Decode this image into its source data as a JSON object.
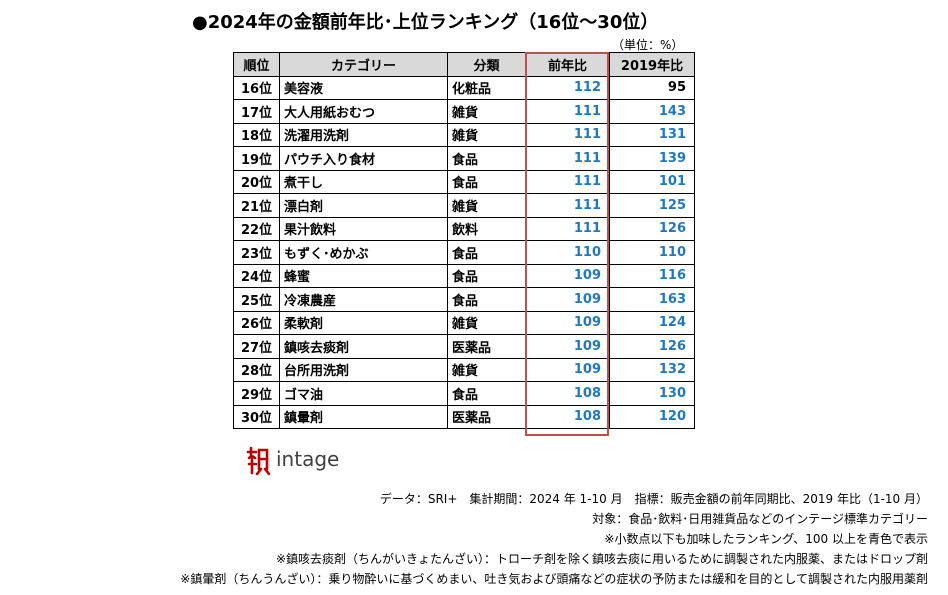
{
  "title": "●2024年の金額前年比･上位ランキング（16位～30位）",
  "unit": "（単位：%）",
  "headers": [
    "順位",
    "カテゴリー",
    "分類",
    "前年比",
    "2019年比"
  ],
  "rows": [
    {
      "rank": "16位",
      "category": "美容液",
      "type": "化粧品",
      "yoy": "112",
      "vs2019": "95",
      "vs2019_color": "black"
    },
    {
      "rank": "17位",
      "category": "大人用紙おむつ",
      "type": "雑貨",
      "yoy": "111",
      "vs2019": "143",
      "vs2019_color": "blue"
    },
    {
      "rank": "18位",
      "category": "洗濯用洗剤",
      "type": "雑貨",
      "yoy": "111",
      "vs2019": "131",
      "vs2019_color": "blue"
    },
    {
      "rank": "19位",
      "category": "パウチ入り食材",
      "type": "食品",
      "yoy": "111",
      "vs2019": "139",
      "vs2019_color": "blue"
    },
    {
      "rank": "20位",
      "category": "煮干し",
      "type": "食品",
      "yoy": "111",
      "vs2019": "101",
      "vs2019_color": "blue"
    },
    {
      "rank": "21位",
      "category": "漂白剤",
      "type": "雑貨",
      "yoy": "111",
      "vs2019": "125",
      "vs2019_color": "blue"
    },
    {
      "rank": "22位",
      "category": "果汁飲料",
      "type": "飲料",
      "yoy": "111",
      "vs2019": "126",
      "vs2019_color": "blue"
    },
    {
      "rank": "23位",
      "category": "もずく･めかぶ",
      "type": "食品",
      "yoy": "110",
      "vs2019": "110",
      "vs2019_color": "blue"
    },
    {
      "rank": "24位",
      "category": "蜂蜜",
      "type": "食品",
      "yoy": "109",
      "vs2019": "116",
      "vs2019_color": "blue"
    },
    {
      "rank": "25位",
      "category": "冷凍農産",
      "type": "食品",
      "yoy": "109",
      "vs2019": "163",
      "vs2019_color": "blue"
    },
    {
      "rank": "26位",
      "category": "柔軟剤",
      "type": "雑貨",
      "yoy": "109",
      "vs2019": "124",
      "vs2019_color": "blue"
    },
    {
      "rank": "27位",
      "category": "鎮咳去痰剤",
      "type": "医薬品",
      "yoy": "109",
      "vs2019": "126",
      "vs2019_color": "blue"
    },
    {
      "rank": "28位",
      "category": "台所用洗剤",
      "type": "雑貨",
      "yoy": "109",
      "vs2019": "132",
      "vs2019_color": "blue"
    },
    {
      "rank": "29位",
      "category": "ゴマ油",
      "type": "食品",
      "yoy": "108",
      "vs2019": "130",
      "vs2019_color": "blue"
    },
    {
      "rank": "30位",
      "category": "鎮暈剤",
      "type": "医薬品",
      "yoy": "108",
      "vs2019": "120",
      "vs2019_color": "blue"
    }
  ],
  "yoy_color": "blue",
  "colors": {
    "blue": "#1f78c1",
    "highlight_border": "#c0504d",
    "header_bg": "#d9d9d9",
    "logo_red": "#c00000"
  },
  "logo": {
    "icon": "intage-logo-mark",
    "text": "intage"
  },
  "notes": [
    "データ：SRI+　集計期間：2024 年 1-10 月　指標：販売金額の前年同期比、2019 年比（1-10 月）",
    "対象：食品･飲料･日用雑貨品などのインテージ標準カテゴリー",
    "※小数点以下も加味したランキング、100 以上を青色で表示",
    "※鎮咳去痰剤（ちんがいきょたんざい）：トローチ剤を除く鎮咳去痰に用いるために調製された内服薬、またはドロップ剤",
    "※鎮暈剤（ちんうんざい）：乗り物酔いに基づくめまい、吐き気および頭痛などの症状の予防または緩和を目的として調製された内服用薬剤"
  ]
}
